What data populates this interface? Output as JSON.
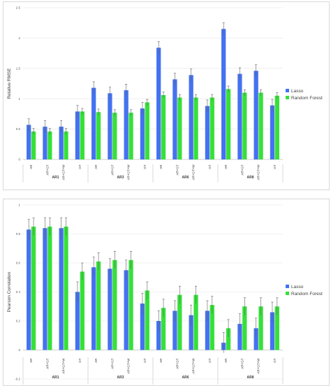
{
  "colors": {
    "lasso": "#4472f0",
    "rf": "#36e03a",
    "error": "#606060",
    "grid": "#e6e6e6",
    "axis": "#bfbfbf"
  },
  "chart_data": [
    {
      "type": "bar",
      "ylabel": "Relative RMSE",
      "ylim": [
        0,
        2.5
      ],
      "yticks": [
        "0",
        "0.5",
        "1",
        "1.5",
        "2",
        "2.5"
      ],
      "yticks_values": [
        0,
        0.5,
        1,
        1.5,
        2,
        2.5
      ],
      "grid": true,
      "legend_position": "right",
      "groups": [
        {
          "label": "AR1",
          "categories": [
            "AR",
            "AR+GT",
            "AR+GT+W",
            "GT"
          ]
        },
        {
          "label": "AR3",
          "categories": [
            "AR",
            "AR+GT",
            "AR+GT+W",
            "GT"
          ]
        },
        {
          "label": "AR6",
          "categories": [
            "AR",
            "AR+GT",
            "AR+GT+W",
            "GT"
          ]
        },
        {
          "label": "AR8",
          "categories": [
            "AR",
            "AR+GT",
            "AR+GT+W",
            "GT"
          ]
        }
      ],
      "series": [
        {
          "name": "Lasso",
          "values": [
            0.57,
            0.54,
            0.54,
            0.79,
            1.18,
            1.09,
            1.14,
            0.84,
            1.84,
            1.32,
            1.39,
            0.88,
            2.15,
            1.41,
            1.46,
            0.89
          ],
          "errors": [
            0.1,
            0.1,
            0.1,
            0.1,
            0.1,
            0.1,
            0.1,
            0.1,
            0.1,
            0.1,
            0.1,
            0.1,
            0.1,
            0.1,
            0.1,
            0.1
          ]
        },
        {
          "name": "Random Forest",
          "values": [
            0.46,
            0.46,
            0.46,
            0.79,
            0.78,
            0.77,
            0.77,
            0.94,
            1.06,
            1.02,
            1.02,
            1.02,
            1.16,
            1.1,
            1.1,
            1.05
          ],
          "errors": [
            0.05,
            0.05,
            0.05,
            0.05,
            0.05,
            0.05,
            0.05,
            0.05,
            0.05,
            0.05,
            0.05,
            0.05,
            0.05,
            0.05,
            0.05,
            0.05
          ]
        }
      ]
    },
    {
      "type": "bar",
      "ylabel": "Pearson Correlation",
      "ylim": [
        -0.2,
        1
      ],
      "yticks": [
        "-0.2",
        "0",
        "0.2",
        "0.4",
        "0.6",
        "0.8",
        "1"
      ],
      "yticks_values": [
        -0.2,
        0,
        0.2,
        0.4,
        0.6,
        0.8,
        1
      ],
      "grid": true,
      "legend_position": "right",
      "groups": [
        {
          "label": "AR1",
          "categories": [
            "AR",
            "AR+GT",
            "AR+GT+W",
            "GT"
          ]
        },
        {
          "label": "AR3",
          "categories": [
            "AR",
            "AR+GT",
            "AR+GT+W",
            "GT"
          ]
        },
        {
          "label": "AR6",
          "categories": [
            "AR",
            "AR+GT",
            "AR+GT+W",
            "GT"
          ]
        },
        {
          "label": "AR8",
          "categories": [
            "AR",
            "AR+GT",
            "AR+GT+W",
            "GT"
          ]
        }
      ],
      "series": [
        {
          "name": "Lasso",
          "values": [
            0.83,
            0.84,
            0.84,
            0.4,
            0.57,
            0.56,
            0.55,
            0.32,
            0.2,
            0.27,
            0.24,
            0.27,
            0.05,
            0.18,
            0.15,
            0.26
          ],
          "errors": [
            0.07,
            0.07,
            0.07,
            0.07,
            0.07,
            0.07,
            0.07,
            0.07,
            0.07,
            0.07,
            0.07,
            0.07,
            0.07,
            0.07,
            0.07,
            0.07
          ]
        },
        {
          "name": "Random Forest",
          "values": [
            0.85,
            0.85,
            0.85,
            0.54,
            0.61,
            0.62,
            0.62,
            0.41,
            0.29,
            0.38,
            0.38,
            0.31,
            0.15,
            0.3,
            0.3,
            0.3
          ],
          "errors": [
            0.06,
            0.06,
            0.06,
            0.06,
            0.06,
            0.06,
            0.06,
            0.06,
            0.06,
            0.06,
            0.06,
            0.06,
            0.06,
            0.06,
            0.06,
            0.06
          ]
        }
      ]
    }
  ]
}
